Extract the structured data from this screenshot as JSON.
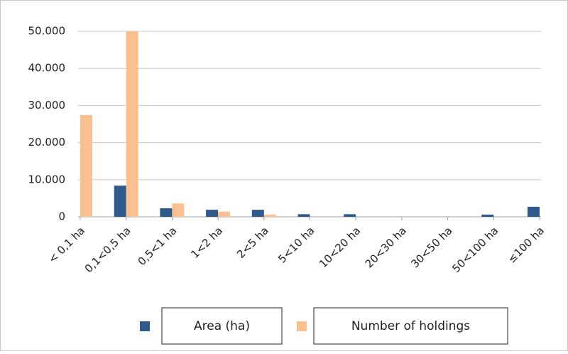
{
  "chart_data": {
    "type": "bar",
    "categories": [
      "< 0,1 ha",
      "0,1<0,5 ha",
      "0,5<1 ha",
      "1<2 ha",
      "2<5 ha",
      "5<10 ha",
      "10<20 ha",
      "20<30 ha",
      "30<50 ha",
      "50<100 ha",
      "≤100 ha"
    ],
    "series": [
      {
        "name": "Area (ha)",
        "color": "#2e5a8e",
        "values": [
          0,
          8400,
          2300,
          1900,
          1900,
          700,
          700,
          0,
          0,
          600,
          2700
        ]
      },
      {
        "name": "Number of holdings",
        "color": "#fac08f",
        "values": [
          27400,
          50000,
          3600,
          1400,
          600,
          0,
          0,
          0,
          0,
          0,
          0
        ]
      }
    ],
    "ylim": [
      0,
      50000
    ],
    "yticks": [
      0,
      {
        "value": 10000,
        "label": "10.000"
      },
      {
        "value": 20000,
        "label": "20.000"
      },
      {
        "value": 30000,
        "label": "30.000"
      },
      {
        "value": 40000,
        "label": "40.000"
      },
      {
        "value": 50000,
        "label": "50.000"
      }
    ],
    "grid": true,
    "legend": "bottom"
  }
}
